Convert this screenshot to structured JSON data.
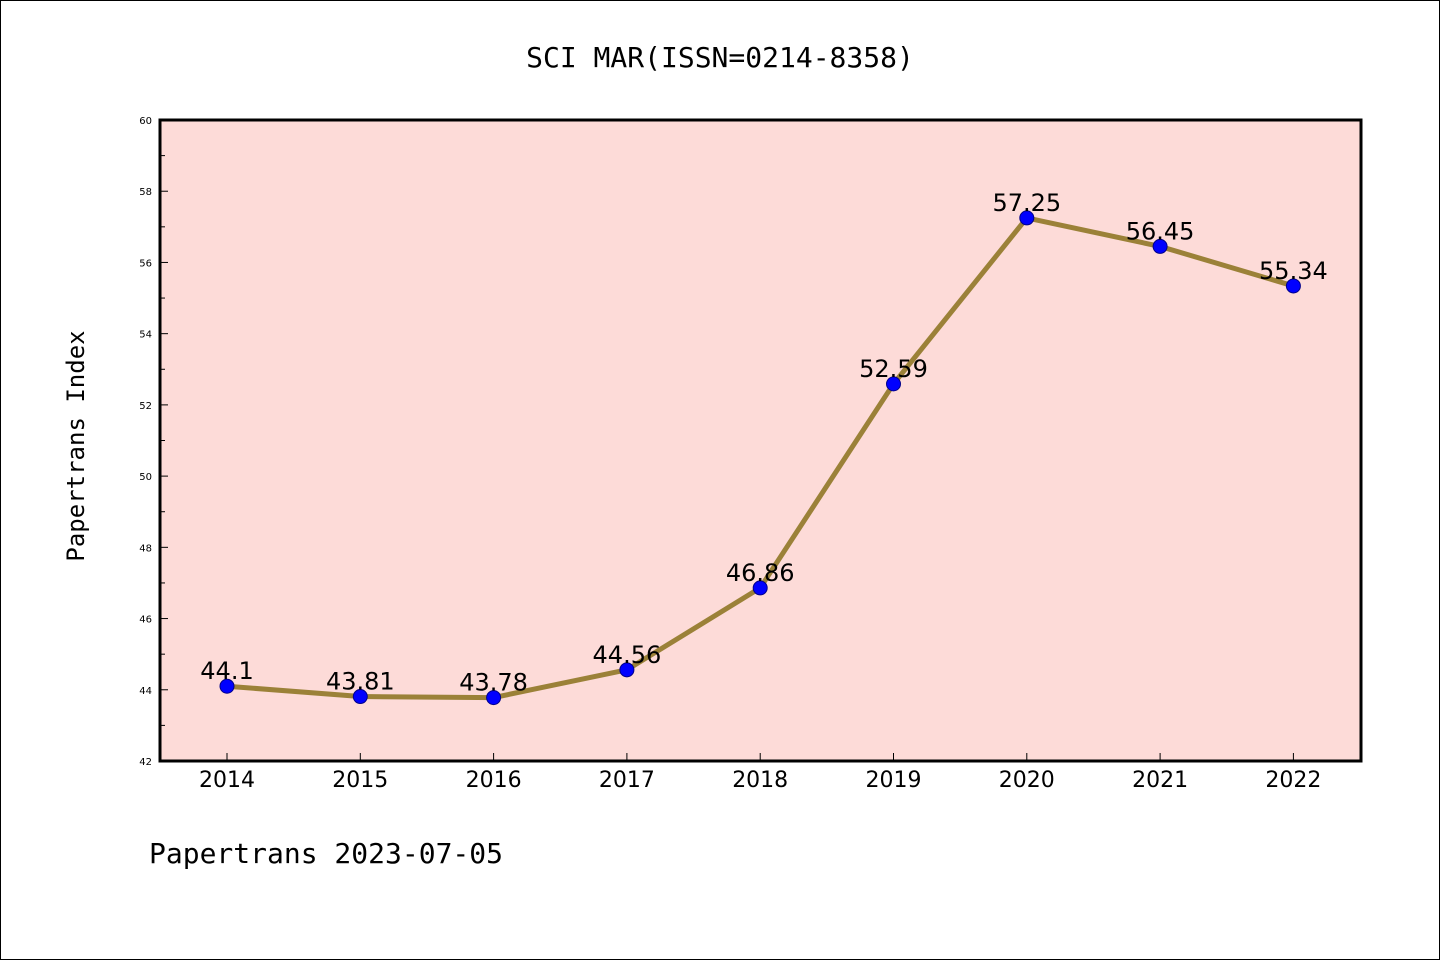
{
  "chart_data": {
    "type": "line",
    "title": "SCI MAR(ISSN=0214-8358)",
    "xlabel": "",
    "ylabel": "Papertrans Index",
    "footer": "Papertrans 2023-07-05",
    "ylim": [
      42,
      60
    ],
    "yticks": [
      42,
      44,
      46,
      48,
      50,
      52,
      54,
      56,
      58,
      60
    ],
    "x": [
      "2014",
      "2015",
      "2016",
      "2017",
      "2018",
      "2019",
      "2020",
      "2021",
      "2022"
    ],
    "series": [
      {
        "values": [
          44.1,
          43.81,
          43.78,
          44.56,
          46.86,
          52.59,
          57.25,
          56.45,
          55.34
        ],
        "labels": [
          "44.1",
          "43.81",
          "43.78",
          "44.56",
          "46.86",
          "52.59",
          "57.25",
          "56.45",
          "55.34"
        ]
      }
    ],
    "grid": false,
    "colors": {
      "plot_background": "#fddbd8",
      "line": "#9b8138",
      "marker_fill": "#0000ff",
      "marker_edge": "#00008b"
    }
  }
}
